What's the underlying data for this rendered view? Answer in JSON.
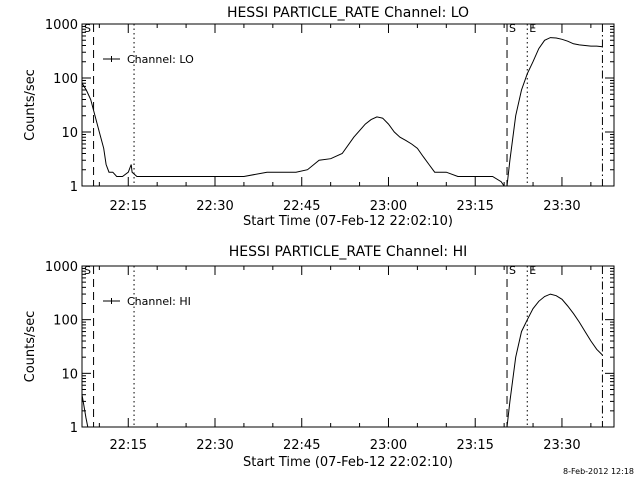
{
  "footer_timestamp": "8-Feb-2012 12:18",
  "chart_data": [
    {
      "type": "line",
      "title": "HESSI PARTICLE_RATE Channel: LO",
      "xlabel": "Start Time (07-Feb-12 22:02:10)",
      "ylabel": "Counts/sec",
      "yscale": "log",
      "ylim": [
        1,
        1000
      ],
      "xlim": [
        "22:07:00",
        "23:39:00"
      ],
      "x_ticks": [
        "22:15",
        "22:30",
        "22:45",
        "23:00",
        "23:15",
        "23:30"
      ],
      "y_ticks": [
        "1",
        "10",
        "100",
        "1000"
      ],
      "legend": "Channel: LO",
      "legend_position": "top-left",
      "markers": [
        {
          "label": "S",
          "time": "23:20:30",
          "style": "dashed"
        },
        {
          "label": "E",
          "time": "23:24:00",
          "style": "dotted"
        }
      ],
      "reference_lines": [
        {
          "time": "22:09:00",
          "style": "dashed"
        },
        {
          "time": "22:16:00",
          "style": "dotted"
        },
        {
          "time": "23:37:00",
          "style": "dash-dot"
        }
      ],
      "corner_letter": "S",
      "series": [
        {
          "times": [
            "22:07:00",
            "22:07:45",
            "22:08:30",
            "22:09:15",
            "22:10:00",
            "22:10:45",
            "22:11:10",
            "22:11:40",
            "22:12:20",
            "22:13:00",
            "22:14:00",
            "22:15:00",
            "22:15:30",
            "22:15:40",
            "22:16:30",
            "22:20:00",
            "22:25:00",
            "22:30:00",
            "22:35:00",
            "22:39:00",
            "22:44:00",
            "22:46:00",
            "22:48:00",
            "22:50:00",
            "22:52:00",
            "22:54:00",
            "22:56:00",
            "22:57:00",
            "22:58:00",
            "22:59:00",
            "23:00:00",
            "23:01:00",
            "23:02:00",
            "23:03:00",
            "23:04:00",
            "23:05:00",
            "23:06:00",
            "23:07:00",
            "23:08:00",
            "23:10:00",
            "23:12:00",
            "23:14:00",
            "23:16:00",
            "23:18:00",
            "23:19:30",
            "23:20:00",
            "23:20:30",
            "23:21:00",
            "23:22:00",
            "23:23:00",
            "23:24:00",
            "23:25:00",
            "23:26:00",
            "23:27:00",
            "23:28:00",
            "23:29:00",
            "23:30:00",
            "23:31:00",
            "23:32:00",
            "23:33:00",
            "23:34:00",
            "23:35:00",
            "23:36:00",
            "23:37:00"
          ],
          "values": [
            80,
            60,
            40,
            20,
            10,
            5,
            2.5,
            1.8,
            1.8,
            1.5,
            1.5,
            1.8,
            2.5,
            1.8,
            1.5,
            1.5,
            1.5,
            1.5,
            1.5,
            1.8,
            1.8,
            2,
            3,
            3.2,
            4,
            8,
            14,
            17,
            19,
            18,
            14,
            10,
            8,
            7,
            6,
            5,
            3.5,
            2.5,
            1.8,
            1.8,
            1.5,
            1.5,
            1.5,
            1.5,
            1.2,
            1,
            1,
            3,
            20,
            60,
            120,
            200,
            350,
            500,
            560,
            550,
            520,
            480,
            430,
            410,
            400,
            390,
            390,
            380
          ]
        }
      ]
    },
    {
      "type": "line",
      "title": "HESSI PARTICLE_RATE Channel: HI",
      "xlabel": "Start Time (07-Feb-12 22:02:10)",
      "ylabel": "Counts/sec",
      "yscale": "log",
      "ylim": [
        1,
        1000
      ],
      "xlim": [
        "22:07:00",
        "23:39:00"
      ],
      "x_ticks": [
        "22:15",
        "22:30",
        "22:45",
        "23:00",
        "23:15",
        "23:30"
      ],
      "y_ticks": [
        "1",
        "10",
        "100",
        "1000"
      ],
      "legend": "Channel: HI",
      "legend_position": "top-left",
      "markers": [
        {
          "label": "S",
          "time": "23:20:30",
          "style": "dashed"
        },
        {
          "label": "E",
          "time": "23:24:00",
          "style": "dotted"
        }
      ],
      "reference_lines": [
        {
          "time": "22:09:00",
          "style": "dashed"
        },
        {
          "time": "22:16:00",
          "style": "dotted"
        },
        {
          "time": "23:37:00",
          "style": "dash-dot"
        }
      ],
      "corner_letter": "S",
      "series": [
        {
          "times": [
            "22:07:00",
            "22:07:20",
            "22:07:40",
            "22:08:00",
            "23:20:30",
            "23:21:00",
            "23:22:00",
            "23:23:00",
            "23:24:00",
            "23:25:00",
            "23:26:00",
            "23:27:00",
            "23:28:00",
            "23:29:00",
            "23:30:00",
            "23:31:00",
            "23:32:00",
            "23:33:00",
            "23:34:00",
            "23:35:00",
            "23:36:00",
            "23:37:00"
          ],
          "values": [
            4,
            2.5,
            1.5,
            1,
            1,
            3,
            20,
            60,
            100,
            160,
            220,
            270,
            300,
            280,
            240,
            180,
            130,
            90,
            60,
            40,
            28,
            22
          ]
        }
      ]
    }
  ]
}
